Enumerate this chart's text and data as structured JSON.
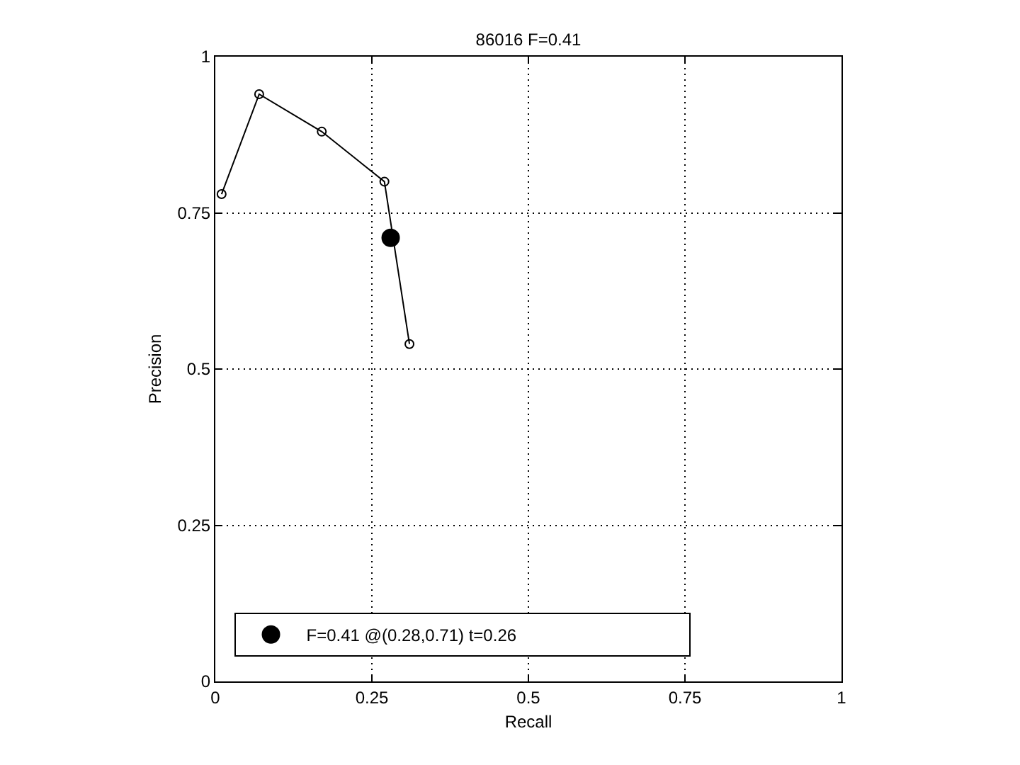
{
  "chart_data": {
    "type": "line",
    "title": "86016 F=0.41",
    "xlabel": "Recall",
    "ylabel": "Precision",
    "series": [
      {
        "color": "#000000",
        "x": [
          0.01,
          0.07,
          0.17,
          0.27,
          0.31
        ],
        "values": [
          0.78,
          0.94,
          0.88,
          0.8,
          0.54
        ],
        "marker": "circle"
      },
      {
        "type": "scatter",
        "name": "F=0.41 @(0.28,0.71) t=0.26",
        "color": "#000000",
        "x": [
          0.28
        ],
        "values": [
          0.71
        ],
        "marker": "circle"
      }
    ],
    "xlim": [
      0,
      1
    ],
    "ylim": [
      0,
      1
    ],
    "xticks": [
      0,
      0.25,
      0.5,
      0.75,
      1
    ],
    "yticks": [
      0,
      0.25,
      0.5,
      0.75,
      1
    ],
    "grid": true,
    "legend": "bottom left",
    "line_style": "solid"
  }
}
